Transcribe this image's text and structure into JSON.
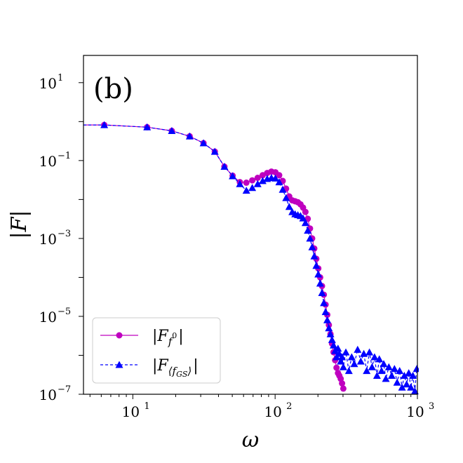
{
  "chart_data": {
    "type": "line",
    "panel_label": "(b)",
    "xlabel": "ω",
    "ylabel": "|F|",
    "xscale": "log",
    "yscale": "log",
    "xlim": [
      4.5,
      1000
    ],
    "ylim": [
      1e-07,
      50
    ],
    "x_ticks": [
      {
        "value": 10,
        "base": "10",
        "exp": "1"
      },
      {
        "value": 100,
        "base": "10",
        "exp": "2"
      },
      {
        "value": 1000,
        "base": "10",
        "exp": "3"
      }
    ],
    "y_ticks": [
      {
        "value": 10,
        "base": "10",
        "exp": "1"
      },
      {
        "value": 0.1,
        "base": "10",
        "exp": "−1"
      },
      {
        "value": 0.001,
        "base": "10",
        "exp": "−3"
      },
      {
        "value": 1e-05,
        "base": "10",
        "exp": "−5"
      },
      {
        "value": 1e-07,
        "base": "10",
        "exp": "−7"
      }
    ],
    "legend_position": "lower-left",
    "series": [
      {
        "name": "|F_{f^0}|",
        "legend_main": "|F",
        "legend_sub": "f",
        "legend_subsup": "0",
        "legend_close": "|",
        "color": "#bf00bf",
        "marker": "circle",
        "linestyle": "solid",
        "x": [
          4.5,
          6.3,
          12.6,
          18.8,
          25.1,
          31.4,
          37.7,
          44,
          50.3,
          56.5,
          62.8,
          69.1,
          75.4,
          81.7,
          88,
          94.2,
          100.5,
          106.8,
          113.1,
          119.4,
          125.7,
          132,
          138.2,
          144.5,
          150.8,
          157.1,
          163.4,
          169.6,
          175.9,
          182.2,
          188.5,
          194.8,
          201.1,
          207.3,
          213.6,
          219.9,
          226.2,
          232.5,
          238.8,
          245,
          251.3,
          257.6,
          263.9,
          270.2,
          276.5,
          282.7,
          289,
          295.3,
          301.6
        ],
        "y": [
          0.82,
          0.82,
          0.72,
          0.58,
          0.42,
          0.28,
          0.17,
          0.07,
          0.041,
          0.028,
          0.027,
          0.031,
          0.036,
          0.042,
          0.048,
          0.052,
          0.05,
          0.042,
          0.03,
          0.019,
          0.012,
          0.0095,
          0.009,
          0.0085,
          0.0075,
          0.0062,
          0.0048,
          0.0032,
          0.0018,
          0.001,
          0.00055,
          0.0003,
          0.00017,
          0.0001,
          6e-05,
          3.6e-05,
          2e-05,
          1.1e-05,
          6e-06,
          3.5e-06,
          2e-06,
          1.2e-06,
          7.5e-07,
          4.8e-07,
          3.5e-07,
          3e-07,
          2.5e-07,
          1.9e-07,
          1.4e-07
        ]
      },
      {
        "name": "|F_{⟨f_GS⟩}|",
        "legend_main": "|F",
        "legend_sub": "⟨f",
        "legend_subsub": "GS",
        "legend_subclose": "⟩",
        "legend_close": "|",
        "color": "#0000ff",
        "marker": "triangle",
        "linestyle": "dashed",
        "x": [
          4.5,
          6.3,
          12.6,
          18.8,
          25.1,
          31.4,
          37.7,
          44,
          50.3,
          56.5,
          62.8,
          69.1,
          75.4,
          81.7,
          88,
          94.2,
          100.5,
          106.8,
          113.1,
          119.4,
          125.7,
          132,
          138.2,
          144.5,
          150.8,
          157.1,
          163.4,
          169.6,
          175.9,
          182.2,
          188.5,
          194.8,
          201.1,
          207.3,
          213.6,
          219.9,
          226.2,
          232.5,
          238.8,
          245,
          251.3,
          257.6,
          263.9,
          270.2,
          276.5,
          282.7,
          289,
          295.3,
          301.6,
          314,
          330,
          345,
          360,
          380,
          400,
          420,
          440,
          460,
          480,
          500,
          520,
          540,
          560,
          580,
          600,
          630,
          660,
          690,
          720,
          750,
          780,
          810,
          840,
          870,
          900,
          930,
          960,
          990
        ],
        "y": [
          0.82,
          0.82,
          0.72,
          0.58,
          0.42,
          0.28,
          0.17,
          0.07,
          0.04,
          0.025,
          0.017,
          0.02,
          0.025,
          0.03,
          0.034,
          0.036,
          0.035,
          0.028,
          0.018,
          0.011,
          0.0065,
          0.0048,
          0.0042,
          0.004,
          0.0038,
          0.0033,
          0.0025,
          0.0016,
          0.001,
          0.0006,
          0.00035,
          0.0002,
          0.00012,
          7e-05,
          4e-05,
          2.2e-05,
          1.3e-05,
          8e-06,
          5e-06,
          3.5e-06,
          2.5e-06,
          1.8e-06,
          1.3e-06,
          9e-07,
          1.5e-06,
          1.1e-06,
          7e-07,
          9e-07,
          5e-07,
          1.2e-06,
          4e-07,
          9e-07,
          6e-07,
          1.4e-06,
          7e-07,
          1.1e-06,
          4e-07,
          1.2e-06,
          5e-07,
          9e-07,
          3e-07,
          8e-07,
          4e-07,
          6e-07,
          2.5e-07,
          5e-07,
          3e-07,
          4.5e-07,
          2e-07,
          4e-07,
          1.5e-07,
          3e-07,
          1.8e-07,
          3.5e-07,
          1.5e-07,
          3e-07,
          1.2e-07,
          4.5e-07
        ]
      }
    ]
  }
}
